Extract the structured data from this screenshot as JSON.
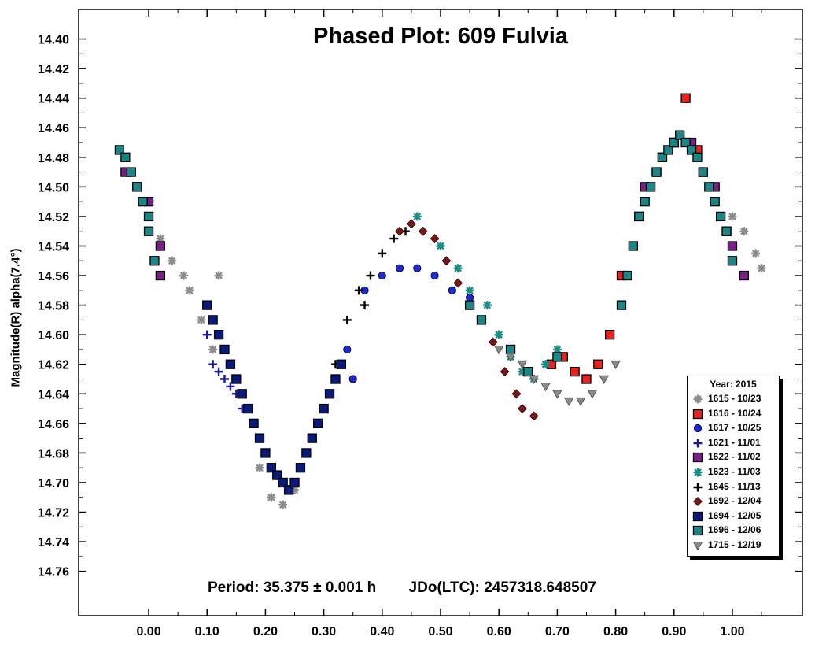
{
  "chart_data": {
    "type": "scatter",
    "title": "Phased Plot: 609 Fulvia",
    "xlabel": "",
    "ylabel": "Magnitude(R) alpha(7.4°)",
    "x_range": [
      -0.12,
      1.12
    ],
    "y_range": [
      14.38,
      14.79
    ],
    "y_inverted": true,
    "x_ticks": [
      0.0,
      0.1,
      0.2,
      0.3,
      0.4,
      0.5,
      0.6,
      0.7,
      0.8,
      0.9,
      1.0
    ],
    "x_tick_labels": [
      "0.00",
      "0.10",
      "0.20",
      "0.30",
      "0.40",
      "0.50",
      "0.60",
      "0.70",
      "0.80",
      "0.90",
      "1.00"
    ],
    "y_ticks": [
      14.4,
      14.42,
      14.44,
      14.46,
      14.48,
      14.5,
      14.52,
      14.54,
      14.56,
      14.58,
      14.6,
      14.62,
      14.64,
      14.66,
      14.68,
      14.7,
      14.72,
      14.74,
      14.76
    ],
    "y_tick_labels": [
      "14.40",
      "14.42",
      "14.44",
      "14.46",
      "14.48",
      "14.50",
      "14.52",
      "14.54",
      "14.56",
      "14.58",
      "14.60",
      "14.62",
      "14.64",
      "14.66",
      "14.68",
      "14.70",
      "14.72",
      "14.74",
      "14.76"
    ],
    "period_text": "Period: 35.375 ± 0.001 h",
    "epoch_text": "JDo(LTC): 2457318.648507",
    "legend_title": "Year: 2015",
    "legend_position": "bottom-right",
    "series": [
      {
        "name": "1615 - 10/23",
        "marker": "asterisk",
        "color": "#8c8c8c",
        "points": [
          [
            -0.04,
            14.49
          ],
          [
            -0.02,
            14.5
          ],
          [
            0.0,
            14.52
          ],
          [
            0.02,
            14.535
          ],
          [
            0.04,
            14.55
          ],
          [
            0.06,
            14.56
          ],
          [
            0.07,
            14.57
          ],
          [
            0.09,
            14.59
          ],
          [
            0.11,
            14.61
          ],
          [
            0.12,
            14.56
          ],
          [
            0.19,
            14.69
          ],
          [
            0.21,
            14.71
          ],
          [
            0.23,
            14.715
          ],
          [
            0.25,
            14.705
          ],
          [
            1.0,
            14.52
          ],
          [
            1.02,
            14.53
          ],
          [
            1.04,
            14.545
          ],
          [
            1.05,
            14.555
          ]
        ]
      },
      {
        "name": "1616 - 10/24",
        "marker": "square",
        "color": "#e8231f",
        "points": [
          [
            0.69,
            14.62
          ],
          [
            0.71,
            14.615
          ],
          [
            0.73,
            14.625
          ],
          [
            0.75,
            14.63
          ],
          [
            0.77,
            14.62
          ],
          [
            0.79,
            14.6
          ],
          [
            0.81,
            14.56
          ],
          [
            0.84,
            14.52
          ],
          [
            0.87,
            14.49
          ],
          [
            0.9,
            14.47
          ],
          [
            0.92,
            14.44
          ],
          [
            0.94,
            14.475
          ]
        ]
      },
      {
        "name": "1617 - 10/25",
        "marker": "circle",
        "color": "#1c28d6",
        "points": [
          [
            0.37,
            14.57
          ],
          [
            0.4,
            14.56
          ],
          [
            0.43,
            14.555
          ],
          [
            0.46,
            14.555
          ],
          [
            0.49,
            14.56
          ],
          [
            0.52,
            14.57
          ],
          [
            0.55,
            14.575
          ],
          [
            0.35,
            14.63
          ],
          [
            0.34,
            14.61
          ]
        ]
      },
      {
        "name": "1621 - 11/01",
        "marker": "plus",
        "color": "#1a1a9a",
        "points": [
          [
            0.1,
            14.6
          ],
          [
            0.11,
            14.62
          ],
          [
            0.12,
            14.625
          ],
          [
            0.13,
            14.63
          ],
          [
            0.14,
            14.635
          ],
          [
            0.15,
            14.64
          ],
          [
            0.16,
            14.65
          ]
        ]
      },
      {
        "name": "1622 - 11/02",
        "marker": "square",
        "color": "#7a1f86",
        "points": [
          [
            -0.04,
            14.49
          ],
          [
            -0.02,
            14.5
          ],
          [
            0.0,
            14.51
          ],
          [
            0.02,
            14.54
          ],
          [
            0.02,
            14.56
          ],
          [
            0.85,
            14.5
          ],
          [
            0.88,
            14.48
          ],
          [
            0.9,
            14.47
          ],
          [
            0.93,
            14.47
          ],
          [
            0.95,
            14.49
          ],
          [
            0.97,
            14.5
          ],
          [
            0.99,
            14.53
          ],
          [
            1.0,
            14.54
          ],
          [
            1.02,
            14.56
          ]
        ]
      },
      {
        "name": "1623 - 11/03",
        "marker": "asterisk",
        "color": "#1d8c86",
        "points": [
          [
            0.46,
            14.52
          ],
          [
            0.5,
            14.54
          ],
          [
            0.53,
            14.555
          ],
          [
            0.55,
            14.57
          ],
          [
            0.58,
            14.58
          ],
          [
            0.6,
            14.6
          ],
          [
            0.62,
            14.615
          ],
          [
            0.64,
            14.625
          ],
          [
            0.66,
            14.63
          ],
          [
            0.68,
            14.62
          ],
          [
            0.7,
            14.61
          ]
        ]
      },
      {
        "name": "1645 - 11/13",
        "marker": "plus",
        "color": "#000000",
        "points": [
          [
            0.3,
            14.65
          ],
          [
            0.32,
            14.62
          ],
          [
            0.34,
            14.59
          ],
          [
            0.36,
            14.57
          ],
          [
            0.37,
            14.58
          ],
          [
            0.38,
            14.56
          ],
          [
            0.4,
            14.545
          ],
          [
            0.42,
            14.535
          ],
          [
            0.44,
            14.53
          ]
        ]
      },
      {
        "name": "1692 - 12/04",
        "marker": "diamond",
        "color": "#7a1518",
        "points": [
          [
            0.43,
            14.53
          ],
          [
            0.45,
            14.525
          ],
          [
            0.47,
            14.53
          ],
          [
            0.49,
            14.535
          ],
          [
            0.51,
            14.55
          ],
          [
            0.53,
            14.565
          ],
          [
            0.55,
            14.58
          ],
          [
            0.57,
            14.59
          ],
          [
            0.59,
            14.605
          ],
          [
            0.61,
            14.625
          ],
          [
            0.63,
            14.64
          ],
          [
            0.64,
            14.65
          ],
          [
            0.66,
            14.655
          ]
        ]
      },
      {
        "name": "1694 - 12/05",
        "marker": "square",
        "color": "#0a1a7a",
        "points": [
          [
            0.1,
            14.58
          ],
          [
            0.11,
            14.59
          ],
          [
            0.12,
            14.6
          ],
          [
            0.13,
            14.61
          ],
          [
            0.14,
            14.62
          ],
          [
            0.15,
            14.63
          ],
          [
            0.16,
            14.64
          ],
          [
            0.17,
            14.65
          ],
          [
            0.18,
            14.66
          ],
          [
            0.19,
            14.67
          ],
          [
            0.2,
            14.68
          ],
          [
            0.21,
            14.69
          ],
          [
            0.22,
            14.695
          ],
          [
            0.23,
            14.7
          ],
          [
            0.24,
            14.705
          ],
          [
            0.25,
            14.7
          ],
          [
            0.26,
            14.69
          ],
          [
            0.27,
            14.68
          ],
          [
            0.28,
            14.67
          ],
          [
            0.29,
            14.66
          ],
          [
            0.3,
            14.65
          ],
          [
            0.31,
            14.64
          ],
          [
            0.32,
            14.63
          ],
          [
            0.33,
            14.62
          ]
        ]
      },
      {
        "name": "1696 - 12/06",
        "marker": "square",
        "color": "#1d8585",
        "points": [
          [
            -0.05,
            14.475
          ],
          [
            -0.04,
            14.48
          ],
          [
            -0.03,
            14.49
          ],
          [
            -0.02,
            14.5
          ],
          [
            -0.01,
            14.51
          ],
          [
            0.0,
            14.52
          ],
          [
            0.0,
            14.53
          ],
          [
            0.01,
            14.55
          ],
          [
            0.81,
            14.58
          ],
          [
            0.82,
            14.56
          ],
          [
            0.83,
            14.54
          ],
          [
            0.84,
            14.52
          ],
          [
            0.85,
            14.51
          ],
          [
            0.86,
            14.5
          ],
          [
            0.87,
            14.49
          ],
          [
            0.88,
            14.48
          ],
          [
            0.89,
            14.475
          ],
          [
            0.9,
            14.47
          ],
          [
            0.91,
            14.465
          ],
          [
            0.92,
            14.47
          ],
          [
            0.93,
            14.475
          ],
          [
            0.94,
            14.48
          ],
          [
            0.95,
            14.49
          ],
          [
            0.96,
            14.5
          ],
          [
            0.97,
            14.51
          ],
          [
            0.98,
            14.52
          ],
          [
            0.99,
            14.53
          ],
          [
            1.0,
            14.55
          ],
          [
            0.62,
            14.61
          ],
          [
            0.65,
            14.625
          ],
          [
            0.7,
            14.615
          ],
          [
            0.57,
            14.59
          ],
          [
            0.55,
            14.58
          ]
        ]
      },
      {
        "name": "1715 - 12/19",
        "marker": "triangle-down",
        "color": "#8a8a8a",
        "points": [
          [
            0.6,
            14.61
          ],
          [
            0.62,
            14.615
          ],
          [
            0.64,
            14.62
          ],
          [
            0.66,
            14.63
          ],
          [
            0.68,
            14.635
          ],
          [
            0.7,
            14.64
          ],
          [
            0.72,
            14.645
          ],
          [
            0.74,
            14.645
          ],
          [
            0.76,
            14.64
          ],
          [
            0.78,
            14.63
          ],
          [
            0.8,
            14.62
          ]
        ]
      }
    ]
  }
}
